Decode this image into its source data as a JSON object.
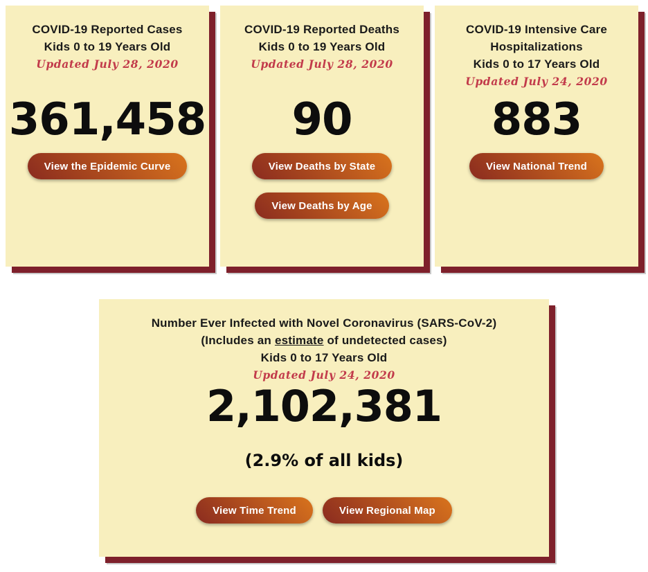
{
  "theme": {
    "card_bg": "#f8efbe",
    "card_shadow": "#7e202b",
    "card_shadow_outer": "#c9c9c9",
    "title_color": "#1a1a1a",
    "updated_color": "#c23b4b",
    "number_color": "#0d0d0d",
    "btn_grad_start": "#8a2b1f",
    "btn_grad_end": "#d9741d",
    "btn_text": "#ffffff",
    "page_bg": "#ffffff"
  },
  "cards": [
    {
      "title_lines": [
        "COVID-19 Reported Cases",
        "Kids 0 to 19 Years Old"
      ],
      "updated": "Updated July 28, 2020",
      "value": "361,458",
      "buttons": [
        {
          "label": "View the Epidemic Curve"
        }
      ]
    },
    {
      "title_lines": [
        "COVID-19 Reported Deaths",
        "Kids 0 to 19 Years Old"
      ],
      "updated": "Updated July 28, 2020",
      "value": "90",
      "buttons": [
        {
          "label": "View Deaths by State"
        },
        {
          "label": "View Deaths by Age"
        }
      ]
    },
    {
      "title_lines": [
        "COVID-19 Intensive Care",
        "Hospitalizations",
        "Kids 0 to 17 Years Old"
      ],
      "updated": "Updated July 24, 2020",
      "value": "883",
      "buttons": [
        {
          "label": "View National Trend"
        }
      ]
    }
  ],
  "infected_card": {
    "title_line1": "Number Ever Infected with Novel Coronavirus (SARS-CoV-2)",
    "title_line2_prefix": "(Includes an ",
    "title_line2_underlined": "estimate",
    "title_line2_suffix": " of undetected cases)",
    "title_line3": "Kids 0 to 17 Years Old",
    "updated": "Updated July 24, 2020",
    "value": "2,102,381",
    "subvalue": "(2.9% of all kids)",
    "buttons": [
      {
        "label": "View Time Trend"
      },
      {
        "label": "View Regional Map"
      }
    ]
  }
}
